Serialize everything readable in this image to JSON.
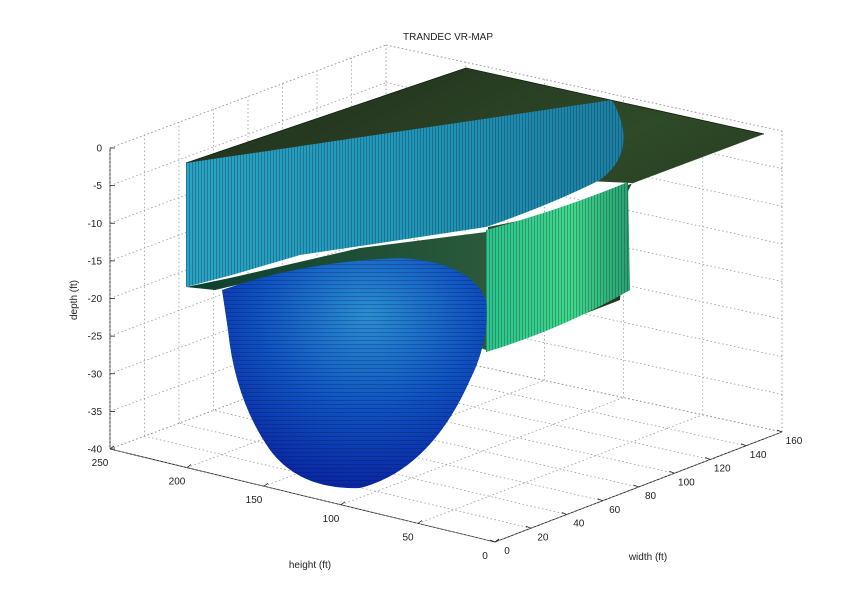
{
  "chart_data": {
    "type": "surface3d",
    "title": "TRANDEC VR-MAP",
    "xlabel": "width (ft)",
    "ylabel": "height (ft)",
    "zlabel": "depth (ft)",
    "xlim": [
      0,
      160
    ],
    "ylim": [
      0,
      250
    ],
    "zlim": [
      -40,
      0
    ],
    "x_ticks": [
      "0",
      "20",
      "40",
      "60",
      "80",
      "100",
      "120",
      "140",
      "160"
    ],
    "y_ticks": [
      "0",
      "50",
      "100",
      "150",
      "200",
      "250"
    ],
    "z_ticks": [
      "0",
      "-5",
      "-10",
      "-15",
      "-20",
      "-25",
      "-30",
      "-35",
      "-40"
    ],
    "grid": true,
    "colormap": [
      "#0a0a8c",
      "#0033cc",
      "#1a7fd6",
      "#2ab0c8",
      "#3ed08a",
      "#2a3d22"
    ]
  }
}
